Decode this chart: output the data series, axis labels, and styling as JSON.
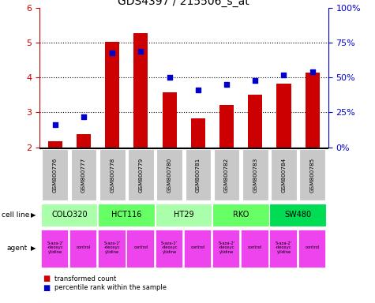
{
  "title": "GDS4397 / 215506_s_at",
  "samples": [
    "GSM800776",
    "GSM800777",
    "GSM800778",
    "GSM800779",
    "GSM800780",
    "GSM800781",
    "GSM800782",
    "GSM800783",
    "GSM800784",
    "GSM800785"
  ],
  "transformed_counts": [
    2.18,
    2.38,
    5.02,
    5.28,
    3.58,
    2.84,
    3.22,
    3.5,
    3.82,
    4.15
  ],
  "percentile_ranks": [
    16,
    22,
    68,
    69,
    50,
    41,
    45,
    48,
    52,
    54
  ],
  "bar_color": "#cc0000",
  "dot_color": "#0000cc",
  "ylim_left": [
    2,
    6
  ],
  "ylim_right": [
    0,
    100
  ],
  "yticks_left": [
    2,
    3,
    4,
    5,
    6
  ],
  "yticks_right": [
    0,
    25,
    50,
    75,
    100
  ],
  "yticklabels_right": [
    "0%",
    "25%",
    "50%",
    "75%",
    "100%"
  ],
  "cell_lines": [
    {
      "name": "COLO320",
      "start": 0,
      "end": 2,
      "color": "#aaffaa"
    },
    {
      "name": "HCT116",
      "start": 2,
      "end": 4,
      "color": "#66ff66"
    },
    {
      "name": "HT29",
      "start": 4,
      "end": 6,
      "color": "#aaffaa"
    },
    {
      "name": "RKO",
      "start": 6,
      "end": 8,
      "color": "#66ff66"
    },
    {
      "name": "SW480",
      "start": 8,
      "end": 10,
      "color": "#00dd55"
    }
  ],
  "agent_color_drug": "#ee44ee",
  "agent_color_control": "#ee44ee",
  "legend_bar_label": "transformed count",
  "legend_dot_label": "percentile rank within the sample",
  "cell_line_label": "cell line",
  "agent_label": "agent",
  "bar_bottom": 2.0,
  "grid_color": "#000000",
  "grid_linewidth": 0.8,
  "sample_bg_color": "#c8c8c8",
  "right_axis_color": "#0000cc",
  "left_axis_color": "#cc0000",
  "agent_drug_text": "5-aza-2’\n-deoxyc\nytidine",
  "agent_ctrl_text": "control"
}
